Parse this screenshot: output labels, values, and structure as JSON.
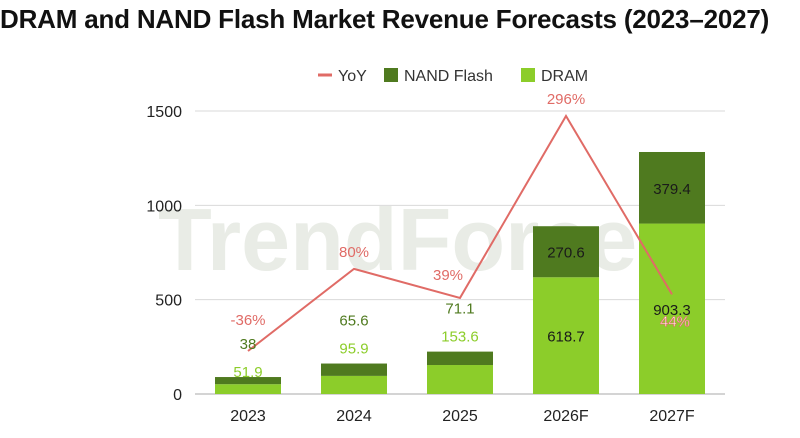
{
  "chart_data": {
    "type": "bar",
    "stacked": true,
    "title": "DRAM and NAND Flash Market Revenue Forecasts (2023–2027)",
    "watermark": "TrendForce",
    "categories": [
      "2023",
      "2024",
      "2025",
      "2026F",
      "2027F"
    ],
    "series": [
      {
        "name": "DRAM",
        "kind": "bar",
        "color": "#8ccd2a",
        "label_color": "#8ccd2a",
        "values": [
          51.9,
          95.9,
          153.6,
          618.7,
          903.3
        ]
      },
      {
        "name": "NAND Flash",
        "kind": "bar",
        "color": "#4f7a1f",
        "label_color": "#4f7a1f",
        "values": [
          38,
          65.6,
          71.1,
          270.6,
          379.4
        ]
      },
      {
        "name": "YoY",
        "kind": "line",
        "color": "#e06b66",
        "value_labels": [
          "-36%",
          "80%",
          "39%",
          "296%",
          "44%"
        ],
        "values": [
          -36,
          80,
          39,
          296,
          44
        ]
      }
    ],
    "legend_order": [
      "YoY",
      "NAND Flash",
      "DRAM"
    ],
    "legend_position": "top",
    "ylim": [
      0,
      1500
    ],
    "yticks": [
      0,
      500,
      1000,
      1500
    ],
    "grid": true,
    "xlabel": "",
    "ylabel": ""
  }
}
